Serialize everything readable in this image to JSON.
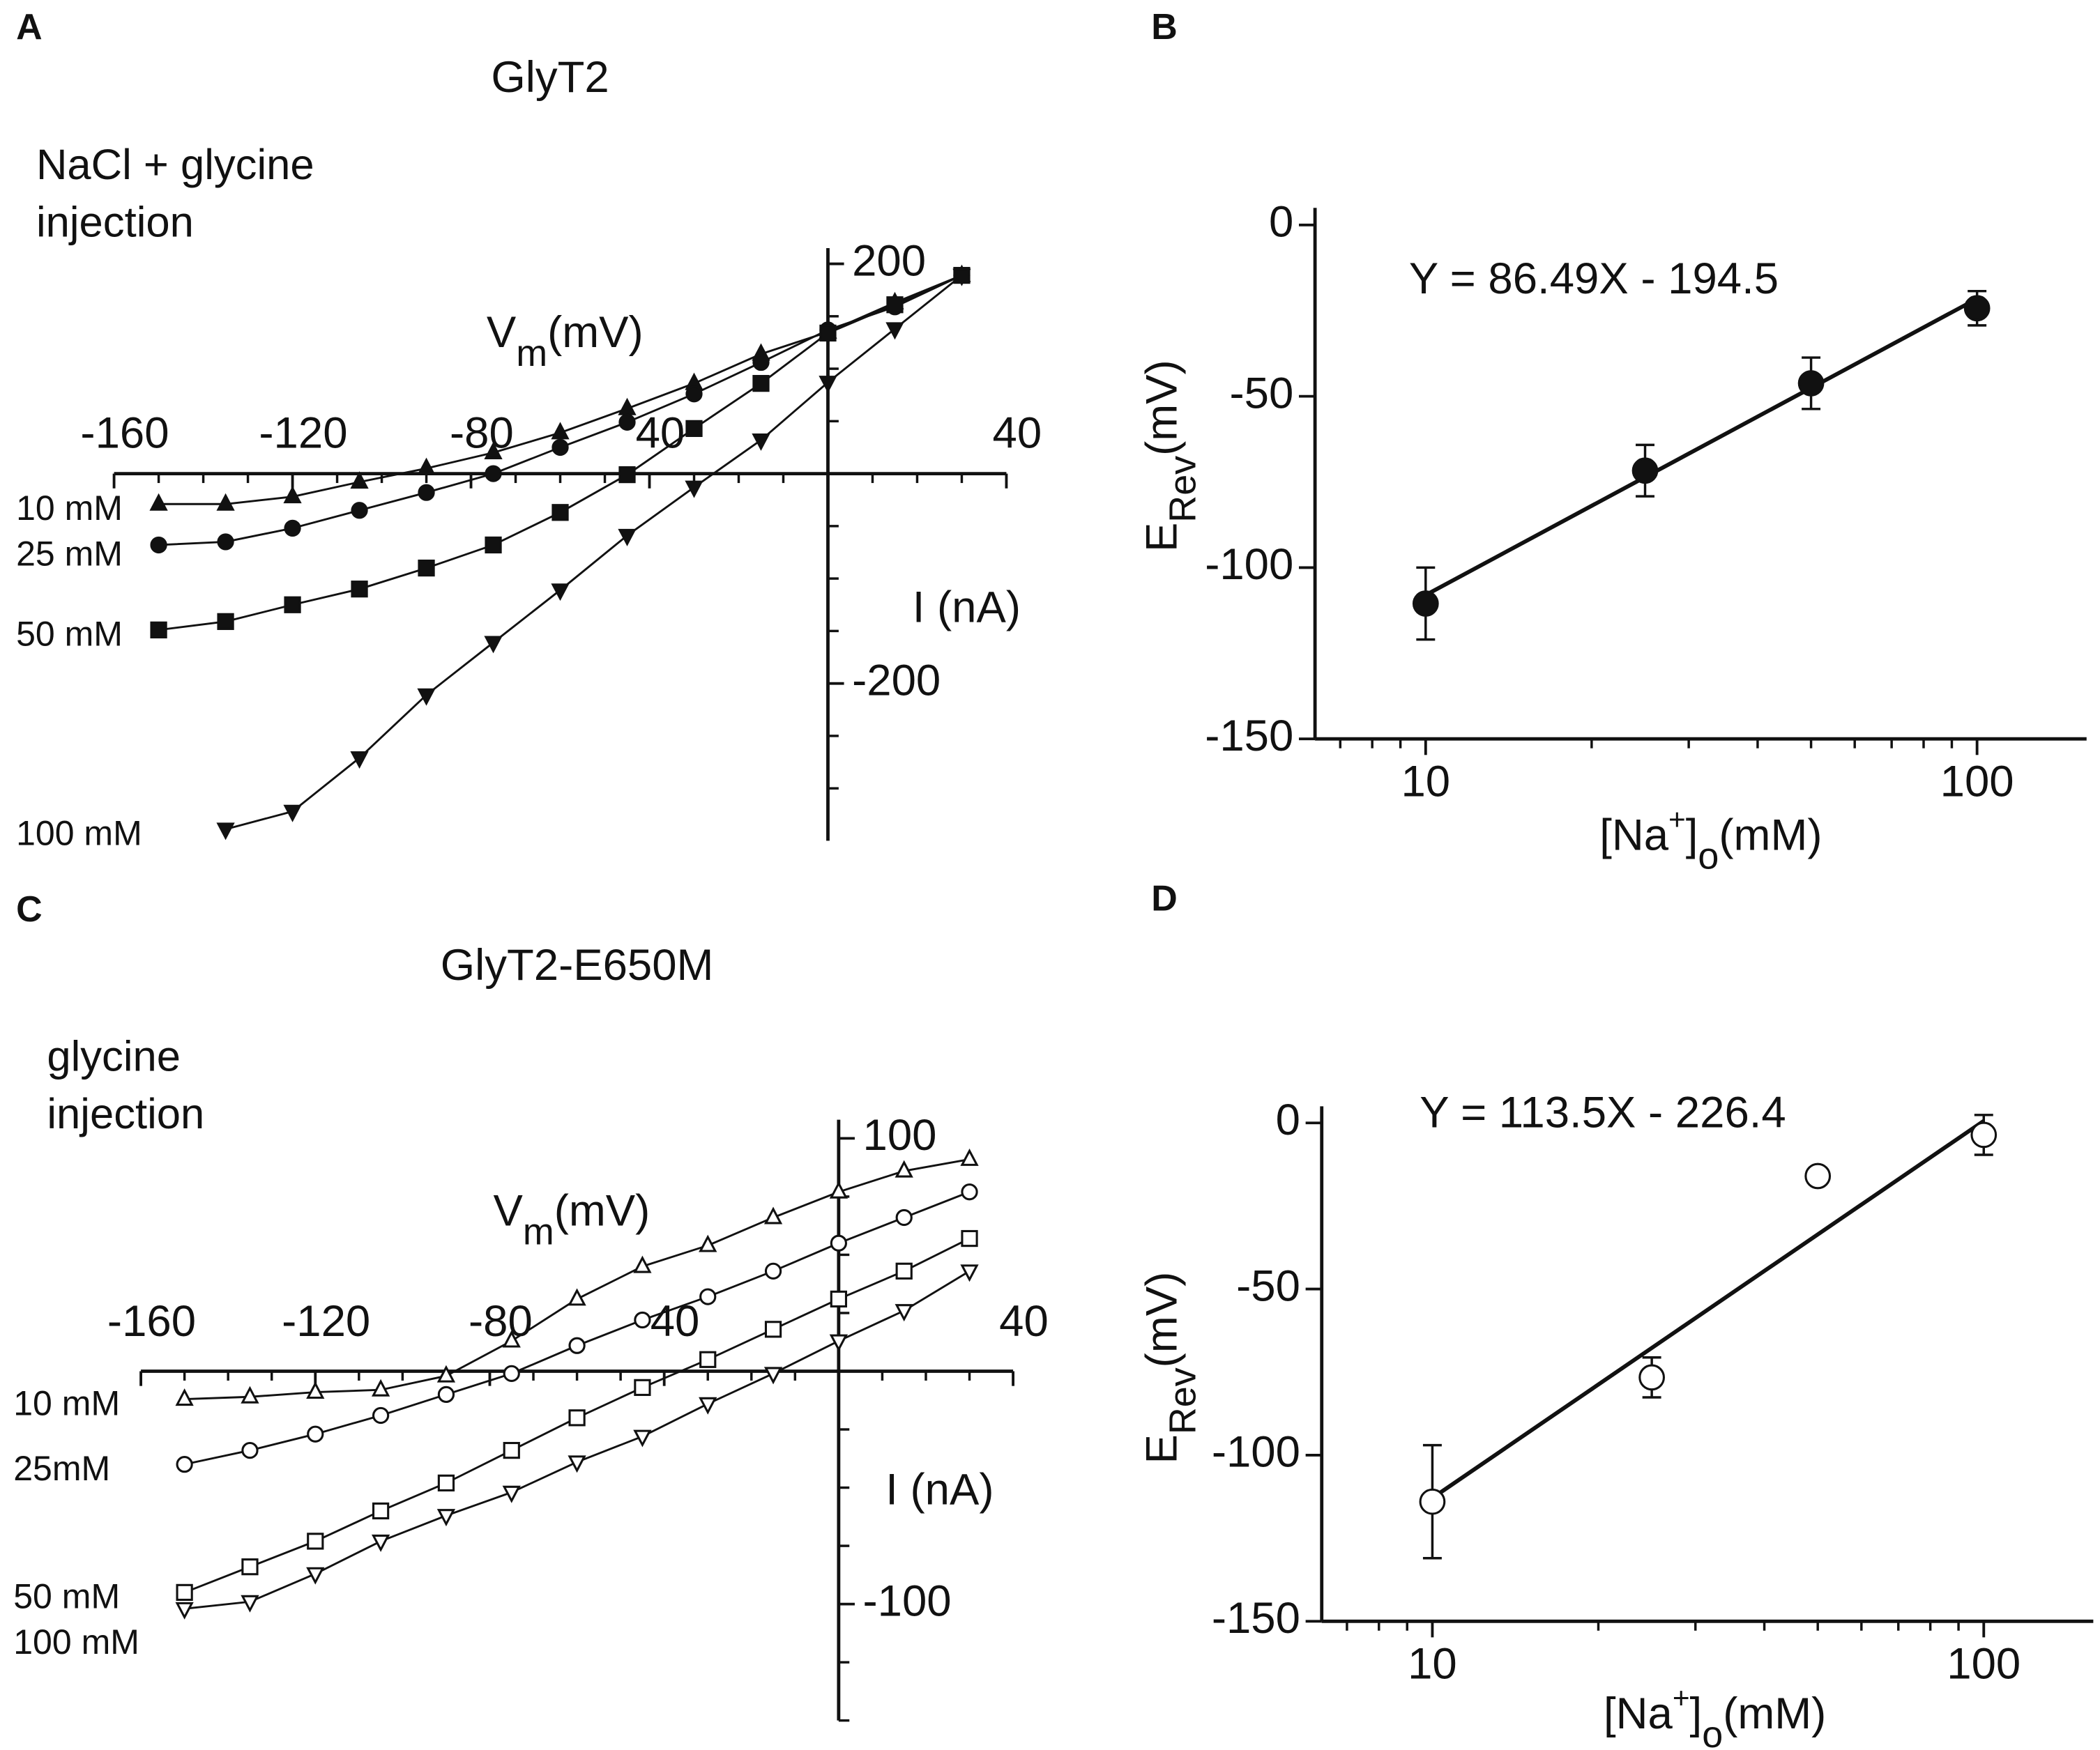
{
  "chart_data": [
    {
      "panel_label": "A",
      "type": "line",
      "title": "GlyT2",
      "annotation": [
        "NaCl + glycine",
        "injection"
      ],
      "xlabel": [
        {
          "text": "V"
        },
        {
          "text": "m",
          "script": "sub"
        },
        {
          "text": "(mV)"
        }
      ],
      "ylabel": "I (nA)",
      "x": [
        -150,
        -135,
        -120,
        -105,
        -90,
        -75,
        -60,
        -45,
        -30,
        -15,
        0,
        15,
        30
      ],
      "xlim": [
        -160,
        40
      ],
      "xticks": [
        -160,
        -120,
        -80,
        {
          "value": -40,
          "label": "40"
        },
        40
      ],
      "xminor_ticks": [
        -150,
        -140,
        -130,
        -110,
        -100,
        -90,
        -70,
        -60,
        -50,
        -30,
        -20,
        -10,
        0,
        10,
        20,
        30
      ],
      "ylim": [
        -350,
        215
      ],
      "yticks": [
        200,
        -200
      ],
      "yminor_ticks": [
        150,
        100,
        50,
        -50,
        -100,
        -150,
        -250,
        -300
      ],
      "series": [
        {
          "name": "10 mM",
          "marker": "triangle-up",
          "filled": true,
          "color": "#111111",
          "values": [
            -29,
            -29,
            -22,
            -8,
            5,
            20,
            39,
            62,
            86,
            114,
            135,
            163,
            189
          ]
        },
        {
          "name": "25 mM",
          "marker": "circle",
          "filled": true,
          "color": "#111111",
          "values": [
            -68,
            -65,
            -52,
            -35,
            -18,
            0,
            25,
            49,
            76,
            106,
            137,
            159,
            189
          ]
        },
        {
          "name": "50 mM",
          "marker": "square",
          "filled": true,
          "color": "#111111",
          "values": [
            -149,
            -141,
            -125,
            -110,
            -90,
            -68,
            -37,
            -1,
            43,
            86,
            134,
            161,
            189
          ]
        },
        {
          "name": "100 mM",
          "marker": "triangle-down",
          "filled": true,
          "color": "#111111",
          "values": [
            null,
            -339,
            -322,
            -271,
            -211,
            -161,
            -111,
            -59,
            -13,
            32,
            87,
            138,
            189
          ]
        }
      ]
    },
    {
      "panel_label": "B",
      "type": "scatter",
      "xscale": "log",
      "equation": "Y = 86.49X - 194.5",
      "fit": {
        "slope": 86.49,
        "intercept": -194.5,
        "xrange": [
          10,
          100
        ]
      },
      "ylabel": [
        {
          "text": "E"
        },
        {
          "text": "Rev",
          "script": "sub"
        },
        {
          "text": "(mV)"
        }
      ],
      "xlabel": [
        {
          "text": "[Na"
        },
        {
          "text": "+",
          "script": "sup"
        },
        {
          "text": "]"
        },
        {
          "text": "o",
          "script": "sub"
        },
        {
          "text": "(mM)"
        }
      ],
      "x": [
        10,
        25,
        50,
        100
      ],
      "values": [
        -110.5,
        -71.7,
        -46.2,
        -24.3
      ],
      "errors": [
        10.5,
        7.5,
        7.5,
        5
      ],
      "marker": "circle",
      "filled": true,
      "color": "#111111",
      "xlim": [
        6.3,
        158
      ],
      "xticks": [
        10,
        100
      ],
      "xminor_ticks": [
        7,
        8,
        9,
        20,
        30,
        40,
        50,
        60,
        70,
        80,
        90
      ],
      "ylim": [
        -150,
        5
      ],
      "yticks": [
        0,
        -50,
        -100,
        -150
      ]
    },
    {
      "panel_label": "C",
      "type": "line",
      "title": "GlyT2-E650M",
      "annotation": [
        "glycine",
        "injection"
      ],
      "xlabel": [
        {
          "text": "V"
        },
        {
          "text": "m",
          "script": "sub"
        },
        {
          "text": "(mV)"
        }
      ],
      "ylabel": "I (nA)",
      "x": [
        -150,
        -135,
        -120,
        -105,
        -90,
        -75,
        -60,
        -45,
        -30,
        -15,
        0,
        15,
        30
      ],
      "xlim": [
        -160,
        40
      ],
      "xticks": [
        -160,
        -120,
        -80,
        {
          "value": -40,
          "label": "40"
        },
        40
      ],
      "xminor_ticks": [
        -150,
        -140,
        -130,
        -110,
        -100,
        -90,
        -70,
        -60,
        -50,
        -30,
        -20,
        -10,
        0,
        10,
        20,
        30
      ],
      "ylim": [
        -150,
        108
      ],
      "yticks": [
        100,
        -100
      ],
      "yminor_ticks": [
        75,
        50,
        25,
        -25,
        -50,
        -75,
        -125,
        -150
      ],
      "series": [
        {
          "name": "10 mM",
          "marker": "triangle-up",
          "filled": false,
          "color": "#111111",
          "values": [
            -12,
            -11,
            -9,
            -8,
            -2,
            13,
            31,
            45,
            54,
            66,
            77,
            86,
            91
          ]
        },
        {
          "name": "25mM",
          "marker": "circle",
          "filled": false,
          "color": "#111111",
          "values": [
            -40,
            -34,
            -27,
            -19,
            -10,
            -1,
            11,
            22,
            32,
            43,
            55,
            66,
            77
          ]
        },
        {
          "name": "50 mM",
          "marker": "square",
          "filled": false,
          "color": "#111111",
          "values": [
            -95,
            -84,
            -73,
            -60,
            -48,
            -34,
            -20,
            -7,
            5,
            18,
            31,
            43,
            57
          ]
        },
        {
          "name": "100 mM",
          "marker": "triangle-down",
          "filled": false,
          "color": "#111111",
          "values": [
            -102,
            -99,
            -87,
            -73,
            -62,
            -52,
            -39,
            -28,
            -14,
            -1,
            13,
            26,
            43
          ]
        }
      ]
    },
    {
      "panel_label": "D",
      "type": "scatter",
      "xscale": "log",
      "equation": "Y = 113.5X - 226.4",
      "fit": {
        "slope": 113.5,
        "intercept": -226.4,
        "xrange": [
          10,
          100
        ]
      },
      "ylabel": [
        {
          "text": "E"
        },
        {
          "text": "Rev",
          "script": "sub"
        },
        {
          "text": "(mV)"
        }
      ],
      "xlabel": [
        {
          "text": "[Na"
        },
        {
          "text": "+",
          "script": "sup"
        },
        {
          "text": "]"
        },
        {
          "text": "o",
          "script": "sub"
        },
        {
          "text": "(mM)"
        }
      ],
      "x": [
        10,
        25,
        50,
        100
      ],
      "values": [
        -114,
        -76.6,
        -16,
        -3.6
      ],
      "errors": [
        17,
        6,
        null,
        6
      ],
      "marker": "circle",
      "filled": false,
      "color": "#111111",
      "xlim": [
        6.3,
        158
      ],
      "xticks": [
        10,
        100
      ],
      "xminor_ticks": [
        7,
        8,
        9,
        20,
        30,
        40,
        50,
        60,
        70,
        80,
        90
      ],
      "ylim": [
        -150,
        5
      ],
      "yticks": [
        0,
        -50,
        -100,
        -150
      ]
    }
  ]
}
